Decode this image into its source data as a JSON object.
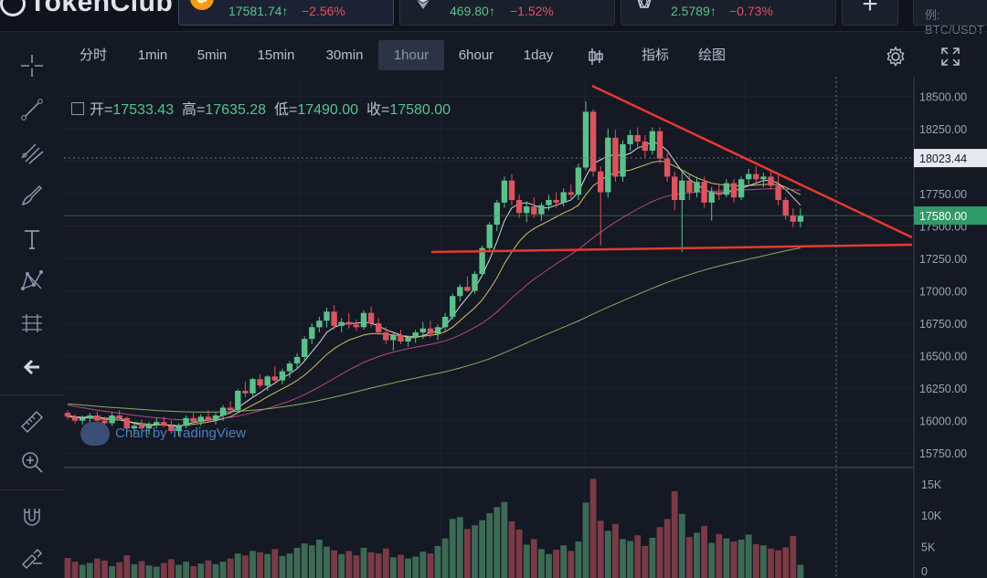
{
  "app": {
    "logo_text": "TokenClub"
  },
  "tickers": [
    {
      "symbol_icon": "bitcoin-icon",
      "price": "17581.74↑",
      "change": "−2.56%",
      "active": true
    },
    {
      "symbol_icon": "ethereum-icon",
      "price": "469.80↑",
      "change": "−1.52%",
      "active": false
    },
    {
      "symbol_icon": "eos-icon",
      "price": "2.5789↑",
      "change": "−0.73%",
      "active": false
    }
  ],
  "search": {
    "placeholder": "例: BTC/USDT"
  },
  "toolbar": {
    "timeframes": [
      "分时",
      "1min",
      "5min",
      "15min",
      "30min",
      "1hour",
      "6hour",
      "1day"
    ],
    "selected": "1hour",
    "indicators_label": "指标",
    "drawing_label": "绘图"
  },
  "ohlc": {
    "open_label": "开=",
    "open": "17533.43",
    "high_label": "高=",
    "high": "17635.28",
    "low_label": "低=",
    "low": "17490.00",
    "close_label": "收=",
    "close": "17580.00"
  },
  "watermark": "Chart by TradingView",
  "colors": {
    "up": "#58c28a",
    "down": "#e0525f",
    "trend": "#e8382f",
    "ma_fast": "#e9eef7",
    "ma_mid": "#e4d36b",
    "ma_slow": "#c64f8e",
    "ma_long": "#8fc26a"
  },
  "chart_data": {
    "type": "candlestick",
    "price_axis": {
      "ticks": [
        18500,
        18250,
        18000,
        17750,
        17500,
        17250,
        17000,
        16750,
        16500,
        16250,
        16000,
        15750
      ],
      "ylim": [
        15660,
        18650
      ]
    },
    "last_price_label": "17580.00",
    "crosshair_label": "18023.44",
    "volume_axis": {
      "ticks": [
        "15K",
        "10K",
        "5K",
        "0"
      ],
      "ylim": [
        0,
        17000
      ]
    },
    "candles": [
      [
        16060,
        16080,
        16010,
        16030
      ],
      [
        16030,
        16050,
        15980,
        16000
      ],
      [
        16000,
        16040,
        15970,
        16020
      ],
      [
        16020,
        16060,
        15990,
        16040
      ],
      [
        16040,
        16070,
        15990,
        16000
      ],
      [
        16000,
        16030,
        15960,
        15980
      ],
      [
        15980,
        16060,
        15960,
        16040
      ],
      [
        16040,
        16080,
        16000,
        16020
      ],
      [
        16020,
        16030,
        15920,
        15940
      ],
      [
        15940,
        15990,
        15900,
        15960
      ],
      [
        15960,
        16010,
        15920,
        15940
      ],
      [
        15940,
        15990,
        15890,
        15970
      ],
      [
        15970,
        16020,
        15940,
        15990
      ],
      [
        15990,
        16030,
        15950,
        15960
      ],
      [
        15960,
        16000,
        15900,
        15920
      ],
      [
        15920,
        15980,
        15880,
        15960
      ],
      [
        15960,
        16040,
        15940,
        16020
      ],
      [
        16020,
        16060,
        15980,
        15990
      ],
      [
        15990,
        16050,
        15960,
        16030
      ],
      [
        16030,
        16080,
        15990,
        16000
      ],
      [
        16000,
        16060,
        15970,
        16040
      ],
      [
        16040,
        16120,
        16000,
        16100
      ],
      [
        16100,
        16150,
        16050,
        16080
      ],
      [
        16080,
        16240,
        16060,
        16230
      ],
      [
        16230,
        16300,
        16180,
        16210
      ],
      [
        16210,
        16330,
        16190,
        16320
      ],
      [
        16320,
        16360,
        16250,
        16270
      ],
      [
        16270,
        16350,
        16230,
        16340
      ],
      [
        16340,
        16420,
        16280,
        16310
      ],
      [
        16310,
        16400,
        16280,
        16380
      ],
      [
        16380,
        16460,
        16330,
        16440
      ],
      [
        16440,
        16520,
        16400,
        16490
      ],
      [
        16490,
        16650,
        16470,
        16630
      ],
      [
        16630,
        16750,
        16590,
        16720
      ],
      [
        16720,
        16800,
        16680,
        16770
      ],
      [
        16770,
        16870,
        16720,
        16840
      ],
      [
        16840,
        16890,
        16700,
        16730
      ],
      [
        16730,
        16790,
        16680,
        16760
      ],
      [
        16760,
        16830,
        16710,
        16740
      ],
      [
        16740,
        16780,
        16690,
        16720
      ],
      [
        16720,
        16850,
        16700,
        16830
      ],
      [
        16830,
        16880,
        16720,
        16750
      ],
      [
        16750,
        16790,
        16660,
        16680
      ],
      [
        16680,
        16720,
        16590,
        16620
      ],
      [
        16620,
        16680,
        16540,
        16660
      ],
      [
        16660,
        16700,
        16590,
        16610
      ],
      [
        16610,
        16650,
        16570,
        16640
      ],
      [
        16640,
        16700,
        16600,
        16680
      ],
      [
        16680,
        16760,
        16630,
        16710
      ],
      [
        16710,
        16770,
        16640,
        16670
      ],
      [
        16670,
        16740,
        16620,
        16720
      ],
      [
        16720,
        16830,
        16690,
        16800
      ],
      [
        16800,
        16980,
        16780,
        16960
      ],
      [
        16960,
        17050,
        16920,
        17030
      ],
      [
        17030,
        17110,
        16990,
        17000
      ],
      [
        17000,
        17150,
        16980,
        17130
      ],
      [
        17130,
        17350,
        17110,
        17330
      ],
      [
        17330,
        17530,
        17300,
        17510
      ],
      [
        17510,
        17700,
        17460,
        17680
      ],
      [
        17680,
        17880,
        17640,
        17850
      ],
      [
        17850,
        17900,
        17660,
        17700
      ],
      [
        17700,
        17740,
        17560,
        17600
      ],
      [
        17600,
        17690,
        17530,
        17650
      ],
      [
        17650,
        17720,
        17560,
        17590
      ],
      [
        17590,
        17680,
        17540,
        17660
      ],
      [
        17660,
        17740,
        17620,
        17700
      ],
      [
        17700,
        17760,
        17640,
        17680
      ],
      [
        17680,
        17790,
        17650,
        17760
      ],
      [
        17760,
        17820,
        17700,
        17740
      ],
      [
        17740,
        17980,
        17700,
        17950
      ],
      [
        17950,
        18460,
        17930,
        18380
      ],
      [
        18380,
        18400,
        17880,
        17920
      ],
      [
        17920,
        17960,
        17350,
        17760
      ],
      [
        17760,
        18250,
        17720,
        18180
      ],
      [
        18180,
        18240,
        17840,
        17880
      ],
      [
        17880,
        18160,
        17840,
        18130
      ],
      [
        18130,
        18240,
        18080,
        18200
      ],
      [
        18200,
        18260,
        18100,
        18150
      ],
      [
        18150,
        18200,
        18030,
        18080
      ],
      [
        18080,
        18260,
        18050,
        18230
      ],
      [
        18230,
        18260,
        17980,
        18020
      ],
      [
        18020,
        18060,
        17840,
        17880
      ],
      [
        17880,
        17920,
        17620,
        17700
      ],
      [
        17700,
        17920,
        17300,
        17850
      ],
      [
        17850,
        17900,
        17700,
        17760
      ],
      [
        17760,
        17880,
        17720,
        17840
      ],
      [
        17840,
        17880,
        17640,
        17680
      ],
      [
        17680,
        17800,
        17540,
        17760
      ],
      [
        17760,
        17820,
        17700,
        17740
      ],
      [
        17740,
        17860,
        17720,
        17830
      ],
      [
        17830,
        17860,
        17680,
        17720
      ],
      [
        17720,
        17880,
        17700,
        17860
      ],
      [
        17860,
        17940,
        17820,
        17900
      ],
      [
        17900,
        17960,
        17830,
        17860
      ],
      [
        17860,
        17910,
        17800,
        17880
      ],
      [
        17880,
        17920,
        17780,
        17810
      ],
      [
        17810,
        17890,
        17660,
        17700
      ],
      [
        17700,
        17720,
        17550,
        17580
      ],
      [
        17580,
        17635,
        17490,
        17533
      ],
      [
        17533,
        17635,
        17490,
        17580
      ]
    ],
    "moving_averages": [
      {
        "kind": "fast",
        "values": [
          16040,
          16030,
          16025,
          16030,
          16030,
          16018,
          16020,
          16020,
          15995,
          15980,
          15965,
          15960,
          15968,
          15970,
          15960,
          15955,
          15970,
          15985,
          15995,
          16005,
          16015,
          16045,
          16060,
          16100,
          16140,
          16180,
          16215,
          16255,
          16290,
          16330,
          16360,
          16400,
          16460,
          16530,
          16600,
          16680,
          16720,
          16740,
          16750,
          16750,
          16760,
          16750,
          16730,
          16700,
          16680,
          16660,
          16640,
          16640,
          16655,
          16675,
          16690,
          16730,
          16800,
          16880,
          16950,
          17020,
          17120,
          17240,
          17380,
          17540,
          17640,
          17670,
          17680,
          17660,
          17640,
          17640,
          17660,
          17680,
          17700,
          17760,
          17880,
          17980,
          18010,
          18040,
          18050,
          18040,
          18060,
          18100,
          18120,
          18150,
          18130,
          18080,
          18000,
          17920,
          17860,
          17820,
          17780,
          17760,
          17750,
          17760,
          17770,
          17790,
          17810,
          17830,
          17850,
          17850,
          17830,
          17780,
          17720,
          17660
        ]
      },
      {
        "kind": "mid",
        "values": [
          16030,
          16025,
          16020,
          16020,
          16015,
          16010,
          16008,
          16005,
          15995,
          15985,
          15978,
          15972,
          15970,
          15968,
          15965,
          15962,
          15965,
          15972,
          15980,
          15990,
          16000,
          16015,
          16030,
          16060,
          16090,
          16120,
          16150,
          16185,
          16215,
          16245,
          16275,
          16310,
          16350,
          16400,
          16455,
          16510,
          16555,
          16590,
          16620,
          16640,
          16660,
          16670,
          16670,
          16665,
          16660,
          16655,
          16650,
          16648,
          16650,
          16658,
          16665,
          16685,
          16720,
          16770,
          16820,
          16870,
          16930,
          17010,
          17100,
          17210,
          17300,
          17380,
          17440,
          17480,
          17510,
          17540,
          17570,
          17600,
          17625,
          17660,
          17740,
          17810,
          17850,
          17890,
          17910,
          17920,
          17930,
          17950,
          17970,
          17990,
          18000,
          17990,
          17960,
          17930,
          17900,
          17870,
          17850,
          17830,
          17820,
          17815,
          17810,
          17810,
          17812,
          17815,
          17820,
          17822,
          17818,
          17800,
          17770,
          17740
        ]
      },
      {
        "kind": "slow",
        "values": [
          16120,
          16110,
          16100,
          16090,
          16080,
          16072,
          16065,
          16058,
          16050,
          16042,
          16035,
          16028,
          16022,
          16017,
          16012,
          16008,
          16006,
          16005,
          16006,
          16008,
          16012,
          16018,
          16025,
          16035,
          16048,
          16062,
          16078,
          16095,
          16113,
          16132,
          16152,
          16175,
          16200,
          16230,
          16260,
          16292,
          16325,
          16358,
          16390,
          16420,
          16448,
          16472,
          16494,
          16512,
          16528,
          16542,
          16555,
          16566,
          16576,
          16588,
          16600,
          16615,
          16635,
          16660,
          16688,
          16718,
          16752,
          16792,
          16838,
          16890,
          16945,
          16995,
          17045,
          17090,
          17130,
          17170,
          17208,
          17245,
          17280,
          17318,
          17365,
          17410,
          17452,
          17492,
          17530,
          17565,
          17598,
          17630,
          17660,
          17688,
          17712,
          17730,
          17742,
          17750,
          17755,
          17760,
          17764,
          17768,
          17770,
          17773,
          17775,
          17778,
          17780,
          17782,
          17785,
          17786,
          17786,
          17784,
          17780,
          17775
        ]
      },
      {
        "kind": "long",
        "values": [
          16130,
          16125,
          16120,
          16115,
          16110,
          16106,
          16102,
          16098,
          16094,
          16090,
          16086,
          16082,
          16078,
          16075,
          16072,
          16070,
          16068,
          16067,
          16066,
          16066,
          16066,
          16067,
          16069,
          16072,
          16076,
          16080,
          16085,
          16091,
          16098,
          16106,
          16114,
          16123,
          16133,
          16144,
          16156,
          16168,
          16181,
          16195,
          16209,
          16223,
          16237,
          16251,
          16265,
          16278,
          16291,
          16304,
          16316,
          16328,
          16340,
          16352,
          16364,
          16377,
          16391,
          16406,
          16422,
          16439,
          16457,
          16477,
          16499,
          16523,
          16548,
          16573,
          16598,
          16623,
          16648,
          16672,
          16696,
          16720,
          16744,
          16768,
          16795,
          16822,
          16848,
          16874,
          16899,
          16924,
          16948,
          16972,
          16996,
          17020,
          17043,
          17065,
          17086,
          17106,
          17125,
          17143,
          17160,
          17176,
          17191,
          17205,
          17218,
          17231,
          17244,
          17257,
          17270,
          17283,
          17296,
          17309,
          17320,
          17330
        ]
      }
    ],
    "volumes": [
      3200,
      2600,
      2100,
      2400,
      3100,
      2800,
      1900,
      2500,
      3600,
      2200,
      2700,
      2000,
      1800,
      2400,
      3000,
      2100,
      2600,
      1900,
      2300,
      2800,
      2200,
      2600,
      3100,
      3900,
      3600,
      4300,
      4100,
      3800,
      4600,
      3500,
      3900,
      4800,
      5500,
      5200,
      6100,
      5000,
      4400,
      3800,
      4300,
      3600,
      4800,
      4100,
      3900,
      4700,
      3300,
      3700,
      3100,
      3400,
      4200,
      3900,
      5100,
      6300,
      9400,
      9700,
      7800,
      8400,
      9200,
      10300,
      11300,
      12100,
      9000,
      7700,
      5300,
      6200,
      4600,
      3800,
      4500,
      5200,
      4300,
      5800,
      12000,
      15800,
      9100,
      7500,
      8600,
      6200,
      5900,
      6800,
      5100,
      6400,
      8100,
      9400,
      13800,
      10200,
      6500,
      7200,
      8300,
      5600,
      7000,
      6300,
      5800,
      6100,
      6900,
      5400,
      5200,
      4700,
      4400,
      4900,
      6700,
      2100
    ]
  }
}
